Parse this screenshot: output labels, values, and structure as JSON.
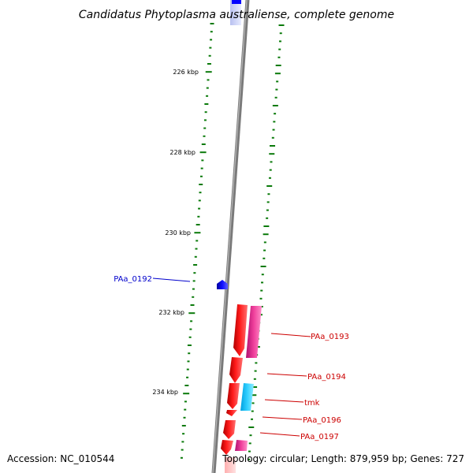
{
  "title": "Candidatus Phytoplasma australiense, complete genome",
  "footer": {
    "accession": "Accession: NC_010544",
    "topology": "Topology: circular; Length: 879,959 bp; Genes: 727"
  },
  "colors": {
    "backbone": "#808080",
    "tick": "#0a7a0a",
    "gene_forward": "#ff0000",
    "gene_magenta": "#e0208c",
    "gene_cyan": "#1ec8ff",
    "gene_blue": "#0000ff",
    "label_red": "#cc0000",
    "label_blue": "#0000cc"
  },
  "kbp_labels": [
    "226 kbp",
    "228 kbp",
    "230 kbp",
    "232 kbp",
    "234 kbp"
  ],
  "genes": [
    {
      "name": "PAa_0192",
      "color": "blue",
      "side": "left"
    },
    {
      "name": "PAa_0193",
      "color": "red",
      "side": "right"
    },
    {
      "name": "PAa_0194",
      "color": "red",
      "side": "right"
    },
    {
      "name": "tmk",
      "color": "red",
      "side": "right"
    },
    {
      "name": "PAa_0196",
      "color": "red",
      "side": "right"
    },
    {
      "name": "PAa_0197",
      "color": "red",
      "side": "right"
    }
  ]
}
